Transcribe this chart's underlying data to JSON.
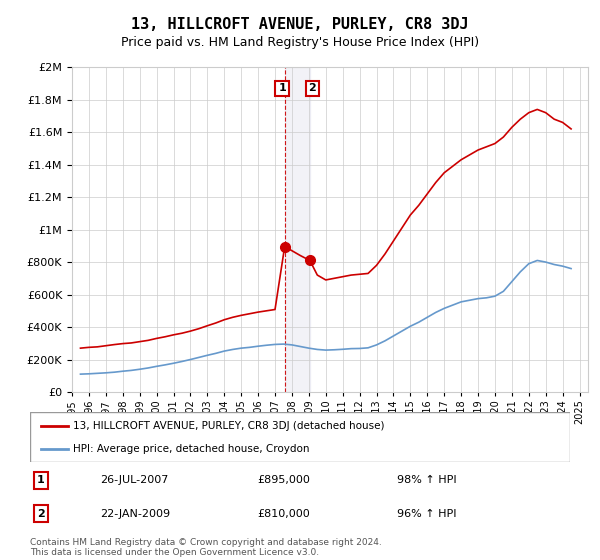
{
  "title": "13, HILLCROFT AVENUE, PURLEY, CR8 3DJ",
  "subtitle": "Price paid vs. HM Land Registry's House Price Index (HPI)",
  "title_fontsize": 11,
  "subtitle_fontsize": 9,
  "legend_line1": "13, HILLCROFT AVENUE, PURLEY, CR8 3DJ (detached house)",
  "legend_line2": "HPI: Average price, detached house, Croydon",
  "sale1_label": "1",
  "sale1_date_str": "26-JUL-2007",
  "sale1_price": 895000,
  "sale1_pct": "98% ↑ HPI",
  "sale2_label": "2",
  "sale2_date_str": "22-JAN-2009",
  "sale2_price": 810000,
  "sale2_pct": "96% ↑ HPI",
  "sale1_x": 2007.57,
  "sale2_x": 2009.06,
  "footer": "Contains HM Land Registry data © Crown copyright and database right 2024.\nThis data is licensed under the Open Government Licence v3.0.",
  "red_color": "#cc0000",
  "blue_color": "#6699cc",
  "vline_color": "#cc0000",
  "vline2_color": "#aaaacc",
  "ylim": [
    0,
    2000000
  ],
  "xlim": [
    1995,
    2025.5
  ],
  "red_x": [
    1995.5,
    1996,
    1996.5,
    1997,
    1997.5,
    1998,
    1998.5,
    1999,
    1999.5,
    2000,
    2000.5,
    2001,
    2001.5,
    2002,
    2002.5,
    2003,
    2003.5,
    2004,
    2004.5,
    2005,
    2005.5,
    2006,
    2006.5,
    2007,
    2007.57,
    2008,
    2008.5,
    2009.06,
    2009.5,
    2010,
    2010.5,
    2011,
    2011.5,
    2012,
    2012.5,
    2013,
    2013.5,
    2014,
    2014.5,
    2015,
    2015.5,
    2016,
    2016.5,
    2017,
    2017.5,
    2018,
    2018.5,
    2019,
    2019.5,
    2020,
    2020.5,
    2021,
    2021.5,
    2022,
    2022.5,
    2023,
    2023.5,
    2024,
    2024.5
  ],
  "red_y": [
    270000,
    275000,
    278000,
    285000,
    292000,
    298000,
    302000,
    310000,
    318000,
    330000,
    340000,
    352000,
    362000,
    375000,
    390000,
    408000,
    425000,
    445000,
    460000,
    472000,
    482000,
    492000,
    500000,
    508000,
    895000,
    870000,
    840000,
    810000,
    720000,
    690000,
    700000,
    710000,
    720000,
    725000,
    730000,
    780000,
    850000,
    930000,
    1010000,
    1090000,
    1150000,
    1220000,
    1290000,
    1350000,
    1390000,
    1430000,
    1460000,
    1490000,
    1510000,
    1530000,
    1570000,
    1630000,
    1680000,
    1720000,
    1740000,
    1720000,
    1680000,
    1660000,
    1620000
  ],
  "blue_x": [
    1995.5,
    1996,
    1996.5,
    1997,
    1997.5,
    1998,
    1998.5,
    1999,
    1999.5,
    2000,
    2000.5,
    2001,
    2001.5,
    2002,
    2002.5,
    2003,
    2003.5,
    2004,
    2004.5,
    2005,
    2005.5,
    2006,
    2006.5,
    2007,
    2007.5,
    2008,
    2008.5,
    2009,
    2009.5,
    2010,
    2010.5,
    2011,
    2011.5,
    2012,
    2012.5,
    2013,
    2013.5,
    2014,
    2014.5,
    2015,
    2015.5,
    2016,
    2016.5,
    2017,
    2017.5,
    2018,
    2018.5,
    2019,
    2019.5,
    2020,
    2020.5,
    2021,
    2021.5,
    2022,
    2022.5,
    2023,
    2023.5,
    2024,
    2024.5
  ],
  "blue_y": [
    110000,
    112000,
    115000,
    118000,
    122000,
    128000,
    133000,
    140000,
    148000,
    158000,
    167000,
    177000,
    188000,
    200000,
    213000,
    226000,
    238000,
    252000,
    262000,
    270000,
    275000,
    282000,
    288000,
    293000,
    295000,
    290000,
    280000,
    270000,
    262000,
    258000,
    260000,
    263000,
    267000,
    268000,
    272000,
    290000,
    315000,
    345000,
    375000,
    405000,
    430000,
    460000,
    490000,
    515000,
    535000,
    555000,
    565000,
    575000,
    580000,
    590000,
    620000,
    680000,
    740000,
    790000,
    810000,
    800000,
    785000,
    775000,
    760000
  ]
}
